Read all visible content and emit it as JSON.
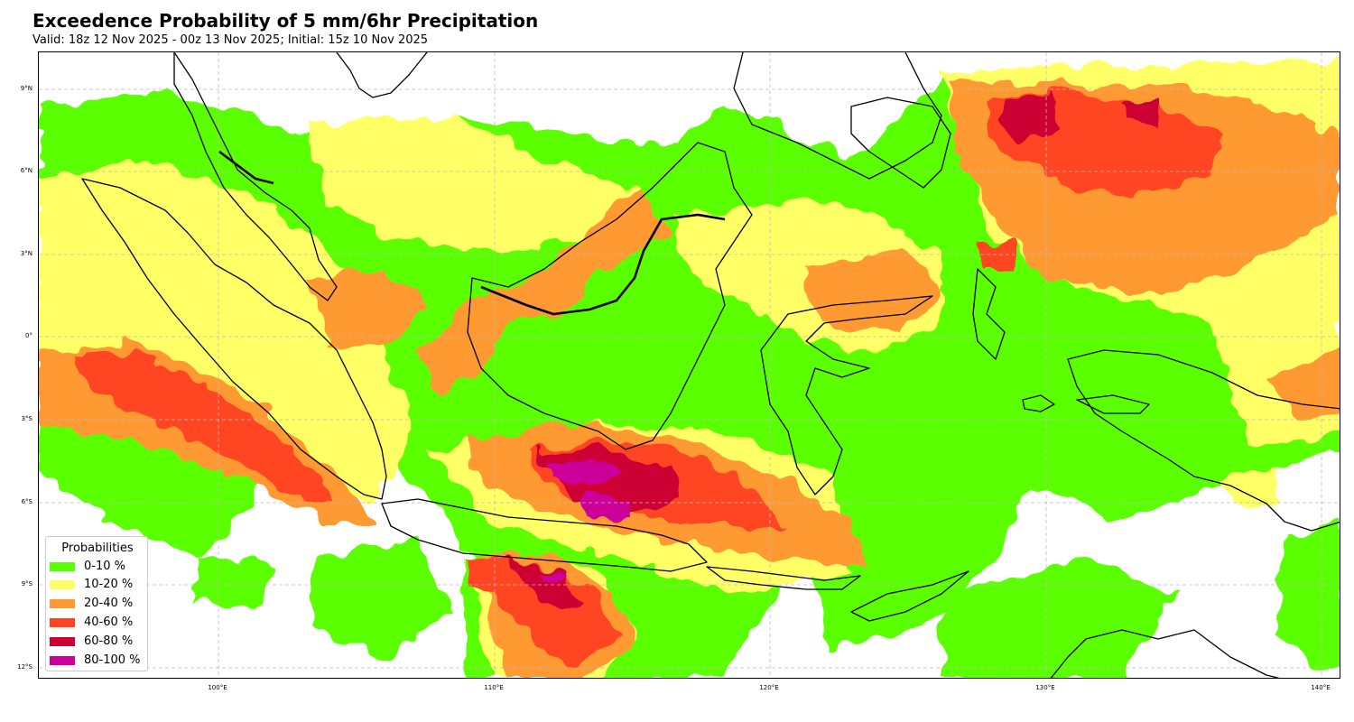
{
  "title": "Exceedence Probability of 5 mm/6hr Precipitation",
  "subtitle": "Valid: 18z 12 Nov 2025 - 00z 13 Nov 2025; Initial: 15z 10 Nov 2025",
  "map": {
    "lon_range": [
      93.5,
      140.7
    ],
    "lat_range": [
      -12.5,
      10.3
    ],
    "lat_ticks": [
      {
        "value": 9,
        "label": "9°N"
      },
      {
        "value": 6,
        "label": "6°N"
      },
      {
        "value": 3,
        "label": "3°N"
      },
      {
        "value": 0,
        "label": "0°"
      },
      {
        "value": -3,
        "label": "3°S"
      },
      {
        "value": -6,
        "label": "6°S"
      },
      {
        "value": -9,
        "label": "9°S"
      },
      {
        "value": -12,
        "label": "12°S"
      }
    ],
    "lon_ticks": [
      {
        "value": 100,
        "label": "100°E"
      },
      {
        "value": 110,
        "label": "110°E"
      },
      {
        "value": 120,
        "label": "120°E"
      },
      {
        "value": 130,
        "label": "130°E"
      },
      {
        "value": 140,
        "label": "140°E"
      }
    ],
    "gridlines": "dashed",
    "coastline_color": "#000000"
  },
  "legend": {
    "title": "Probabilities",
    "placement": "lower-left",
    "items": [
      {
        "label": "0-10 %",
        "color": "#5aff00"
      },
      {
        "label": "10-20 %",
        "color": "#ffff66"
      },
      {
        "label": "20-40 %",
        "color": "#ff9933"
      },
      {
        "label": "40-60 %",
        "color": "#ff4422"
      },
      {
        "label": "60-80 %",
        "color": "#cc0033"
      },
      {
        "label": "80-100 %",
        "color": "#cc0099"
      }
    ]
  }
}
